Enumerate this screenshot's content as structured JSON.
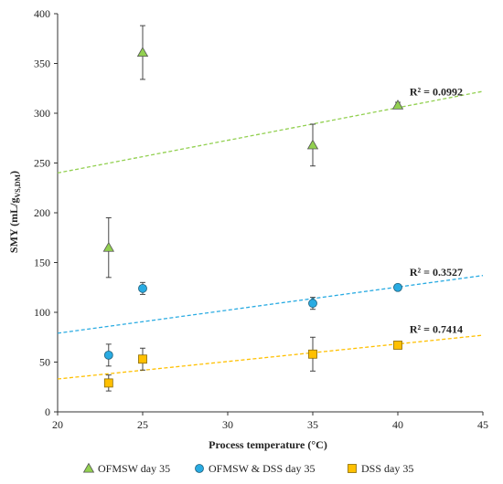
{
  "chart_data": {
    "type": "scatter",
    "xlabel": "Process temperature (°C)",
    "ylabel_main": "SMY (mL/g",
    "ylabel_sub": "VS,DM",
    "ylabel_close": ")",
    "xlim": [
      20,
      45
    ],
    "ylim": [
      0,
      400
    ],
    "xticks": [
      20,
      25,
      30,
      35,
      40,
      45
    ],
    "yticks": [
      0,
      50,
      100,
      150,
      200,
      250,
      300,
      350,
      400
    ],
    "grid": false,
    "legend_position": "bottom",
    "series": [
      {
        "name": "OFMSW day 35",
        "marker": "triangle",
        "color": "#92d050",
        "line_color": "#92d050",
        "points": [
          {
            "x": 23,
            "y": 165,
            "err": 30
          },
          {
            "x": 25,
            "y": 361,
            "err": 27
          },
          {
            "x": 35,
            "y": 268,
            "err": 21
          },
          {
            "x": 40,
            "y": 308,
            "err": 3
          }
        ],
        "trend": {
          "x": [
            20,
            45
          ],
          "y": [
            240,
            322
          ]
        },
        "r2": "R² = 0.0992"
      },
      {
        "name": "OFMSW & DSS day 35",
        "marker": "circle",
        "color": "#29abe2",
        "line_color": "#29abe2",
        "points": [
          {
            "x": 23,
            "y": 57,
            "err": 11
          },
          {
            "x": 25,
            "y": 124,
            "err": 6
          },
          {
            "x": 35,
            "y": 109,
            "err": 6
          },
          {
            "x": 40,
            "y": 125,
            "err": 2
          }
        ],
        "trend": {
          "x": [
            20,
            45
          ],
          "y": [
            79,
            137
          ]
        },
        "r2": "R² = 0.3527"
      },
      {
        "name": "DSS day 35",
        "marker": "square",
        "color": "#ffc000",
        "line_color": "#ffc000",
        "points": [
          {
            "x": 23,
            "y": 29,
            "err": 8
          },
          {
            "x": 25,
            "y": 53,
            "err": 11
          },
          {
            "x": 35,
            "y": 58,
            "err": 17
          },
          {
            "x": 40,
            "y": 67,
            "err": 3
          }
        ],
        "trend": {
          "x": [
            20,
            45
          ],
          "y": [
            33,
            77
          ]
        },
        "r2": "R² = 0.7414"
      }
    ]
  }
}
